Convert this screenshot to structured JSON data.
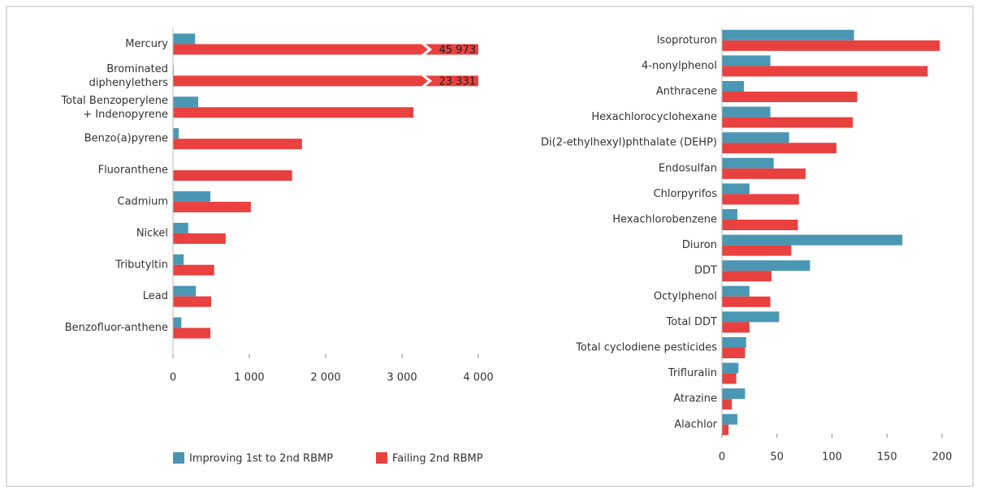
{
  "chart_data": [
    {
      "type": "bar",
      "orientation": "horizontal",
      "categories": [
        "Mercury",
        "Brominated\ndiphenylethers",
        "Total Benzoperylene\n+ Indenopyrene",
        "Benzo(a)pyrene",
        "Fluoranthene",
        "Cadmium",
        "Nickel",
        "Tributyltin",
        "Lead",
        "Benzofluor-anthene"
      ],
      "series": [
        {
          "name": "Improving 1st to 2nd RBMP",
          "color": "#4a97b4",
          "values": [
            290,
            10,
            330,
            75,
            5,
            490,
            200,
            140,
            300,
            110
          ]
        },
        {
          "name": "Failing 2nd RBMP",
          "color": "#e8413f",
          "values": [
            45973,
            23331,
            3150,
            1690,
            1560,
            1020,
            690,
            540,
            500,
            490
          ],
          "value_labels": [
            "45 973",
            "23 331",
            null,
            null,
            null,
            null,
            null,
            null,
            null,
            null
          ]
        }
      ],
      "xlim": [
        0,
        4000
      ],
      "xticks": [
        0,
        {
          "value": 1000,
          "label": "1 000"
        },
        {
          "value": 2000,
          "label": "2 000"
        },
        {
          "value": 3000,
          "label": "3 000"
        },
        {
          "value": 4000,
          "label": "4 000"
        }
      ],
      "legend": "bottom"
    },
    {
      "type": "bar",
      "orientation": "horizontal",
      "categories": [
        "Isoproturon",
        "4-nonylphenol",
        "Anthracene",
        "Hexachlorocyclohexane",
        "Di(2-ethylhexyl)phthalate (DEHP)",
        "Endosulfan",
        "Chlorpyrifos",
        "Hexachlorobenzene",
        "Diuron",
        "DDT",
        "Octylphenol",
        "Total DDT",
        "Total cyclodiene pesticides",
        "Trifluralin",
        "Atrazine",
        "Alachlor"
      ],
      "series": [
        {
          "color": "#4a97b4",
          "values": [
            120,
            44,
            20,
            44,
            61,
            47,
            25,
            14,
            164,
            80,
            25,
            52,
            22,
            15,
            21,
            14
          ]
        },
        {
          "color": "#e8413f",
          "values": [
            198,
            187,
            123,
            119,
            104,
            76,
            70,
            69,
            63,
            45,
            44,
            25,
            21,
            13,
            9,
            6
          ]
        }
      ],
      "xlim": [
        0,
        200
      ],
      "xticks": [
        0,
        50,
        100,
        150,
        200
      ]
    }
  ]
}
